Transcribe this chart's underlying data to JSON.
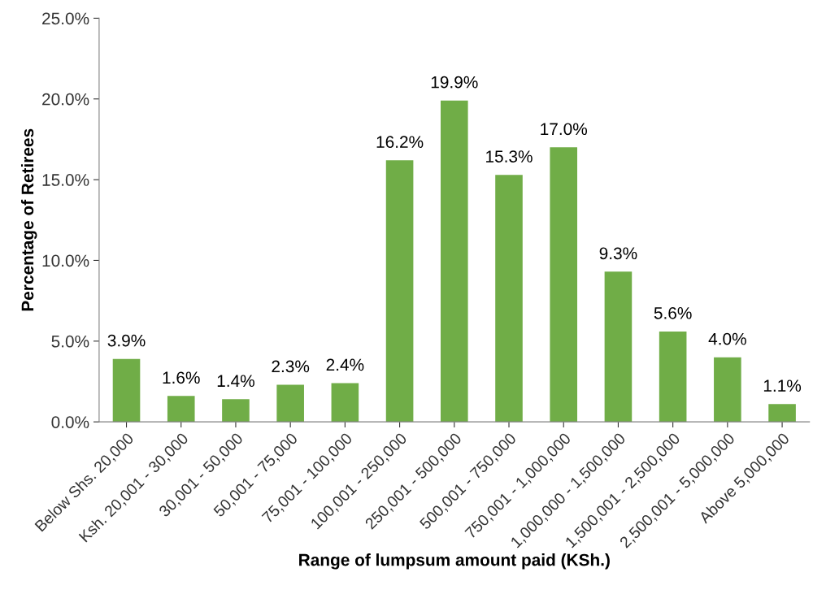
{
  "chart_data": {
    "type": "bar",
    "xlabel": "Range of lumpsum amount paid (KSh.)",
    "ylabel": "Percentage of Retirees",
    "categories": [
      "Below Shs. 20,000",
      "Ksh. 20,001 - 30,000",
      "30,001 - 50,000",
      "50,001 - 75,000",
      "75,001 - 100,000",
      "100,001 - 250,000",
      "250,001 - 500,000",
      "500,001 - 750,000",
      "750,001 - 1,000,000",
      "1,000,000 - 1,500,000",
      "1,500,001 - 2,500,000",
      "2,500,001 - 5,000,000",
      "Above 5,000,000"
    ],
    "values": [
      3.9,
      1.6,
      1.4,
      2.3,
      2.4,
      16.2,
      19.9,
      15.3,
      17.0,
      9.3,
      5.6,
      4.0,
      1.1
    ],
    "value_labels": [
      "3.9%",
      "1.6%",
      "1.4%",
      "2.3%",
      "2.4%",
      "16.2%",
      "19.9%",
      "15.3%",
      "17.0%",
      "9.3%",
      "5.6%",
      "4.0%",
      "1.1%"
    ],
    "color": "#70ad47",
    "ylim": [
      0,
      25
    ],
    "yticks": [
      {
        "value": 0,
        "label": "0.0%"
      },
      {
        "value": 5,
        "label": "5.0%"
      },
      {
        "value": 10,
        "label": "10.0%"
      },
      {
        "value": 15,
        "label": "15.0%"
      },
      {
        "value": 20,
        "label": "20.0%"
      },
      {
        "value": 25,
        "label": "25.0%"
      }
    ],
    "grid": false,
    "legend": false
  }
}
